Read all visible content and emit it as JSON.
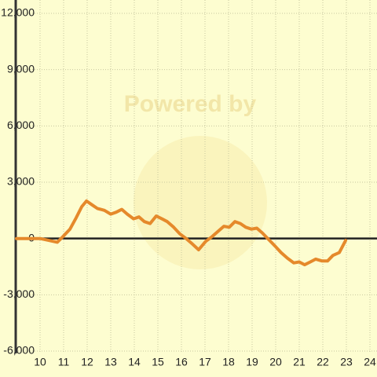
{
  "chart_data": {
    "type": "line",
    "watermark": "Powered by",
    "x": [
      9.0,
      10.0,
      10.37,
      10.73,
      10.97,
      11.27,
      11.53,
      11.77,
      11.97,
      12.2,
      12.43,
      12.73,
      13.0,
      13.23,
      13.47,
      13.7,
      13.97,
      14.2,
      14.43,
      14.67,
      14.93,
      15.17,
      15.4,
      15.67,
      15.93,
      16.2,
      16.47,
      16.73,
      17.03,
      17.3,
      17.57,
      17.8,
      18.03,
      18.27,
      18.5,
      18.73,
      18.97,
      19.2,
      19.43,
      19.7,
      19.97,
      20.23,
      20.5,
      20.77,
      21.0,
      21.23,
      21.47,
      21.7,
      21.97,
      22.2,
      22.43,
      22.7,
      22.97
    ],
    "series": [
      {
        "color": "#e5892b",
        "values": [
          0,
          0,
          -100,
          -200,
          100,
          500,
          1100,
          1700,
          2000,
          1800,
          1600,
          1500,
          1300,
          1400,
          1550,
          1300,
          1050,
          1150,
          900,
          800,
          1200,
          1050,
          900,
          600,
          250,
          0,
          -300,
          -600,
          -150,
          100,
          400,
          650,
          600,
          900,
          800,
          600,
          500,
          550,
          300,
          -50,
          -400,
          -750,
          -1050,
          -1300,
          -1250,
          -1400,
          -1250,
          -1100,
          -1200,
          -1200,
          -900,
          -750,
          -100
        ]
      }
    ],
    "xlim": [
      9,
      24.3
    ],
    "xticks": [
      10,
      11,
      12,
      13,
      14,
      15,
      16,
      17,
      18,
      19,
      20,
      21,
      22,
      23,
      24
    ],
    "ylim": [
      -6000,
      12000
    ],
    "yticks": [
      {
        "value": 12000,
        "label": "12,000"
      },
      {
        "value": 9000,
        "label": "9,000"
      },
      {
        "value": 6000,
        "label": "6,000"
      },
      {
        "value": 3000,
        "label": "3,000"
      },
      0,
      {
        "value": -3000,
        "label": "-3,000"
      },
      {
        "value": -6000,
        "label": "-6,000"
      }
    ],
    "grid": true
  }
}
